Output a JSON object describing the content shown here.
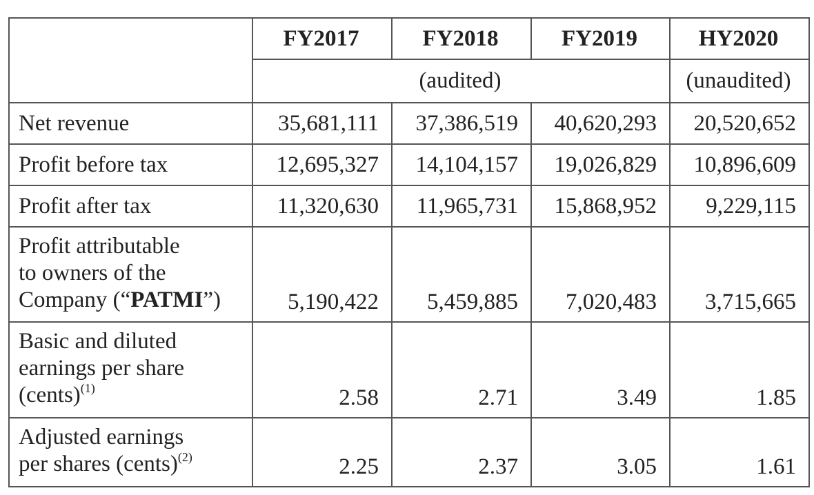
{
  "table": {
    "header": {
      "columns": [
        "FY2017",
        "FY2018",
        "FY2019",
        "HY2020"
      ],
      "audited": "(audited)",
      "unaudited": "(unaudited)"
    },
    "rows": [
      {
        "label": [
          "Net revenue"
        ],
        "values": [
          "35,681,111",
          "37,386,519",
          "40,620,293",
          "20,520,652"
        ]
      },
      {
        "label": [
          "Profit before tax"
        ],
        "values": [
          "12,695,327",
          "14,104,157",
          "19,026,829",
          "10,896,609"
        ]
      },
      {
        "label": [
          "Profit after tax"
        ],
        "values": [
          "11,320,630",
          "11,965,731",
          "15,868,952",
          "9,229,115"
        ]
      },
      {
        "label": [
          "Profit attributable",
          "to owners of the",
          "Company (“",
          "PATMI",
          "”)"
        ],
        "values": [
          "5,190,422",
          "5,459,885",
          "7,020,483",
          "3,715,665"
        ]
      },
      {
        "label": [
          "Basic and diluted",
          "earnings per share",
          "(cents)",
          "(1)"
        ],
        "values": [
          "2.58",
          "2.71",
          "3.49",
          "1.85"
        ]
      },
      {
        "label": [
          "Adjusted earnings",
          "per shares (cents)",
          "(2)"
        ],
        "values": [
          "2.25",
          "2.37",
          "3.05",
          "1.61"
        ]
      }
    ]
  }
}
